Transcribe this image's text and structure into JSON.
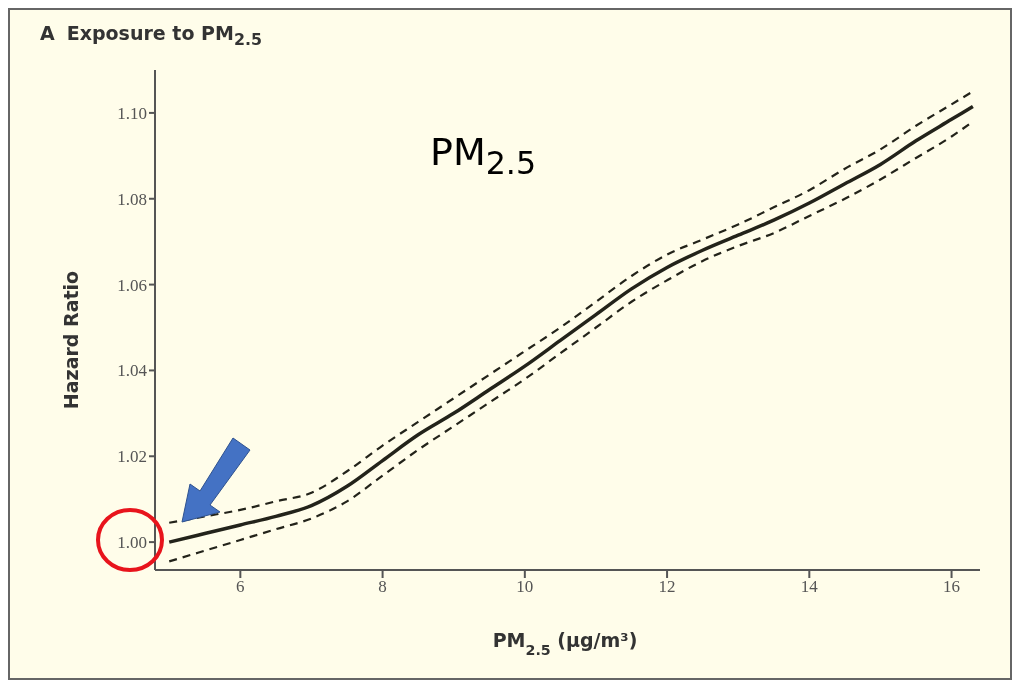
{
  "chart_data": {
    "type": "line",
    "title": "Exposure to PM$_{2.5}$",
    "xlabel": "PM$_{2.5}$ (μg/m³)",
    "ylabel": "Hazard Ratio",
    "annotations": [
      "A",
      "PM$_{2.5}$"
    ],
    "x": [
      5.0,
      5.5,
      6,
      6.5,
      7,
      7.5,
      8,
      8.5,
      9,
      9.5,
      10,
      10.5,
      11,
      11.5,
      12,
      12.5,
      13,
      13.5,
      14,
      14.5,
      15,
      15.5,
      16,
      16.3
    ],
    "series": [
      {
        "color": "#23231a",
        "line_style": "solid",
        "values": [
          1.0,
          1.002,
          1.004,
          1.006,
          1.0085,
          1.013,
          1.019,
          1.025,
          1.03,
          1.0355,
          1.041,
          1.047,
          1.053,
          1.059,
          1.064,
          1.068,
          1.0715,
          1.075,
          1.079,
          1.0835,
          1.088,
          1.0935,
          1.0985,
          1.1015
        ]
      },
      {
        "color": "#23231a",
        "line_style": "dashed",
        "values": [
          0.9955,
          0.998,
          1.0005,
          1.003,
          1.0055,
          1.0095,
          1.0155,
          1.0215,
          1.027,
          1.0325,
          1.038,
          1.044,
          1.05,
          1.056,
          1.061,
          1.0655,
          1.069,
          1.072,
          1.076,
          1.08,
          1.0845,
          1.0895,
          1.0945,
          1.098
        ]
      },
      {
        "color": "#23231a",
        "line_style": "dashed",
        "values": [
          1.0045,
          1.006,
          1.0075,
          1.0095,
          1.0115,
          1.0165,
          1.0225,
          1.028,
          1.0335,
          1.039,
          1.0445,
          1.05,
          1.056,
          1.062,
          1.067,
          1.0705,
          1.074,
          1.078,
          1.082,
          1.087,
          1.0915,
          1.097,
          1.102,
          1.105
        ]
      }
    ],
    "xlim": [
      4.8,
      16.4
    ],
    "xticks": [
      6,
      8,
      10,
      12,
      14,
      16
    ],
    "ylim": [
      0.9935,
      1.11
    ],
    "yticks": [
      {
        "value": 1.0,
        "label": "1.00"
      },
      {
        "value": 1.02,
        "label": "1.02"
      },
      {
        "value": 1.04,
        "label": "1.04"
      },
      {
        "value": 1.06,
        "label": "1.06"
      },
      {
        "value": 1.08,
        "label": "1.08"
      },
      {
        "value": 1.1,
        "label": "1.10"
      }
    ],
    "grid": false,
    "marker": "none"
  }
}
